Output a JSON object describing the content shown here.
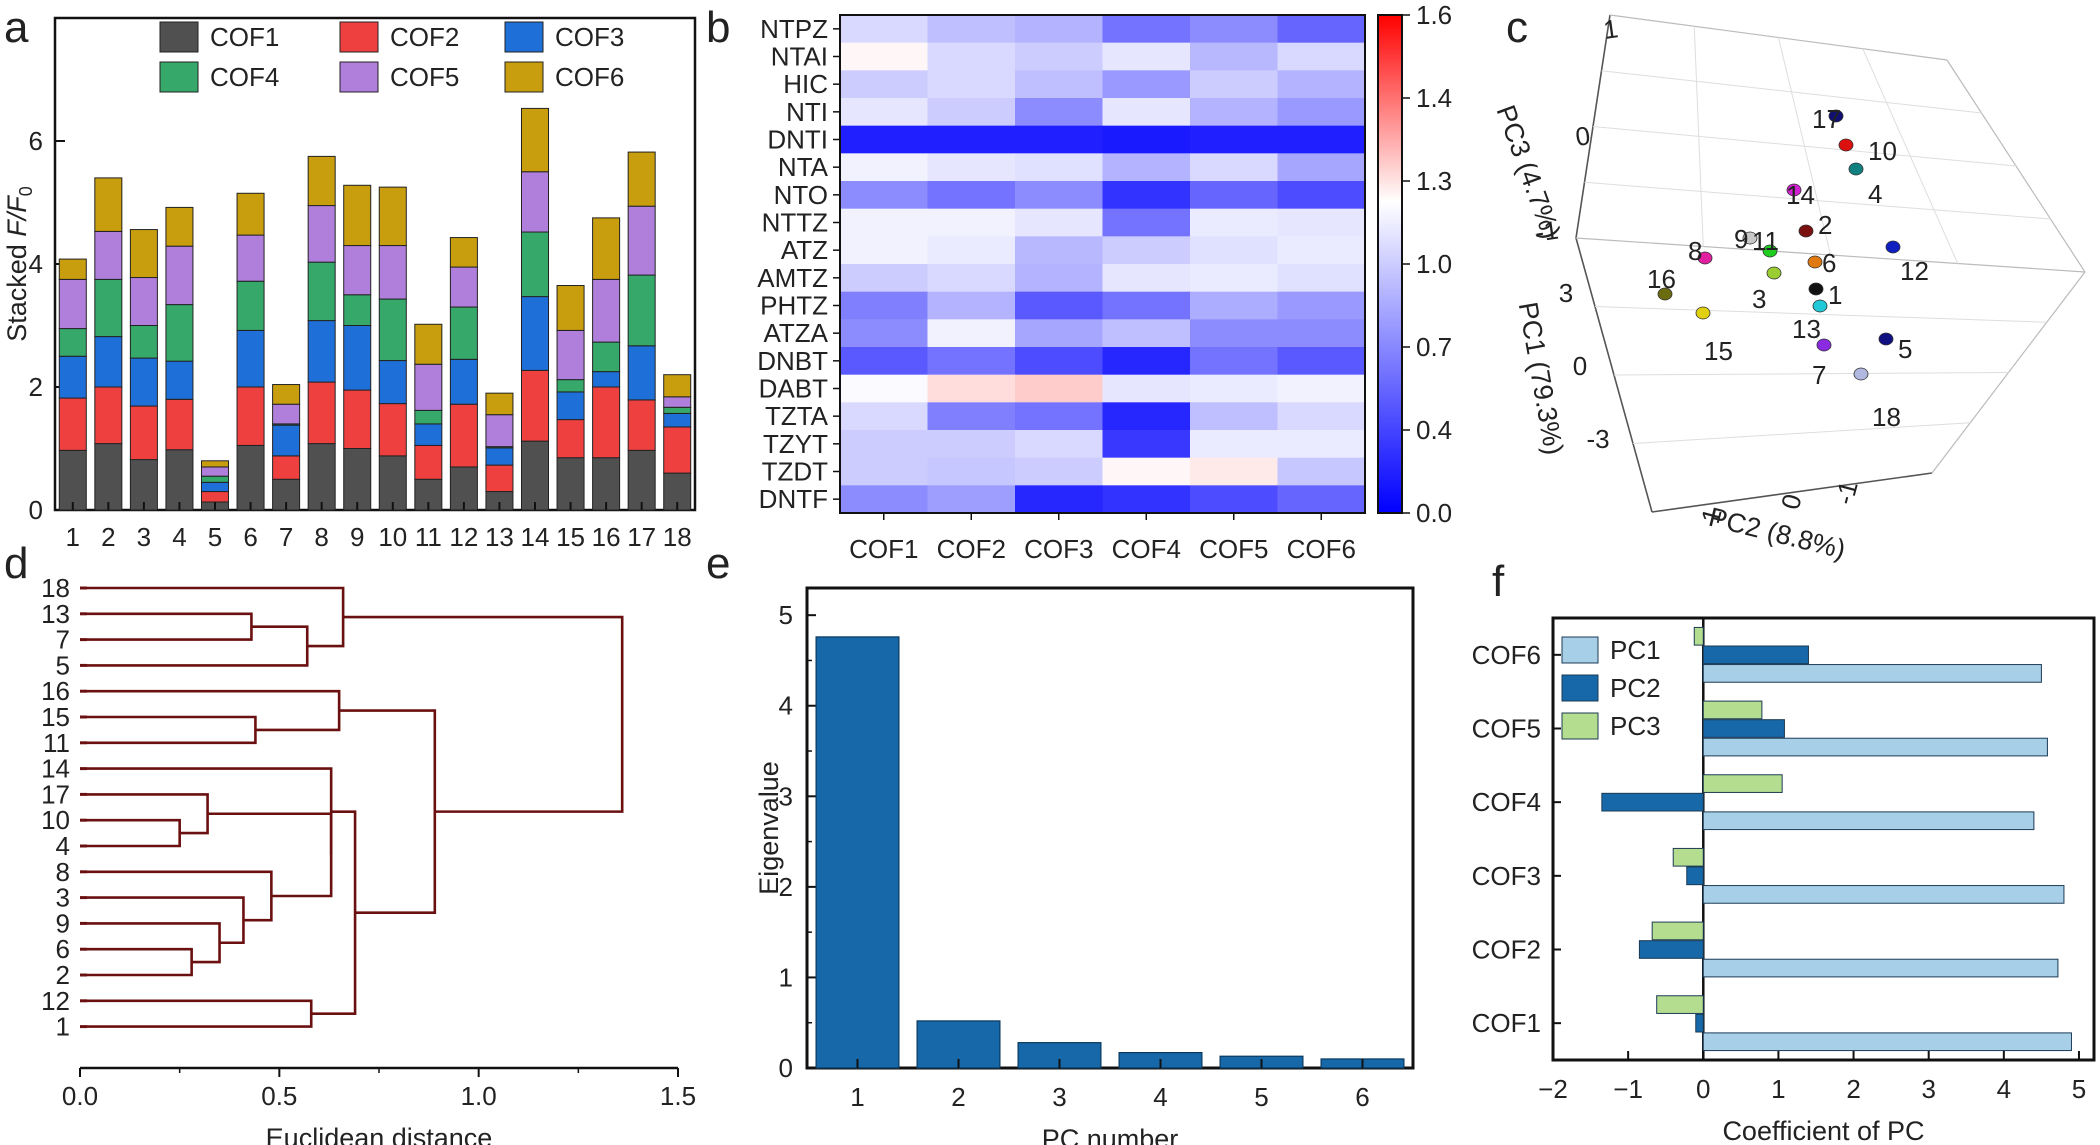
{
  "panel_labels": [
    "a",
    "b",
    "c",
    "d",
    "e",
    "f"
  ],
  "colors": {
    "cof1": "#505050",
    "cof2": "#ef4040",
    "cof3": "#1f6fd8",
    "cof4": "#35a86a",
    "cof5": "#b07fdb",
    "cof6": "#c89e0e",
    "dendro": "#6b1010",
    "bar_e": "#1668a8",
    "pc1": "#a7cfe8",
    "pc2": "#1668a8",
    "pc3": "#b5dd90"
  },
  "chart_data": [
    {
      "panel": "a",
      "type": "bar",
      "stacked": true,
      "ylabel": "Stacked F/F",
      "ylabel_sub": "0",
      "ylim": [
        0,
        8
      ],
      "yticks": [
        0,
        2,
        4,
        6
      ],
      "legend_position": "top",
      "categories": [
        "1",
        "2",
        "3",
        "4",
        "5",
        "6",
        "7",
        "8",
        "9",
        "10",
        "11",
        "12",
        "13",
        "14",
        "15",
        "16",
        "17",
        "18"
      ],
      "series": [
        {
          "name": "COF1",
          "values": [
            0.97,
            1.08,
            0.82,
            0.98,
            0.13,
            1.05,
            0.5,
            1.08,
            1.0,
            0.88,
            0.5,
            0.7,
            0.3,
            1.12,
            0.85,
            0.85,
            0.97,
            0.6
          ]
        },
        {
          "name": "COF2",
          "values": [
            0.85,
            0.92,
            0.87,
            0.82,
            0.17,
            0.95,
            0.38,
            1.0,
            0.95,
            0.85,
            0.55,
            1.02,
            0.43,
            1.15,
            0.62,
            1.15,
            0.82,
            0.75
          ]
        },
        {
          "name": "COF3",
          "values": [
            0.68,
            0.82,
            0.78,
            0.62,
            0.15,
            0.92,
            0.5,
            1.0,
            1.05,
            0.7,
            0.35,
            0.73,
            0.28,
            1.2,
            0.45,
            0.25,
            0.88,
            0.22
          ]
        },
        {
          "name": "COF4",
          "values": [
            0.45,
            0.93,
            0.53,
            0.92,
            0.1,
            0.8,
            0.02,
            0.95,
            0.5,
            1.0,
            0.22,
            0.85,
            0.02,
            1.05,
            0.2,
            0.48,
            1.15,
            0.1
          ]
        },
        {
          "name": "COF5",
          "values": [
            0.8,
            0.78,
            0.78,
            0.95,
            0.15,
            0.75,
            0.32,
            0.92,
            0.8,
            0.87,
            0.75,
            0.65,
            0.52,
            0.98,
            0.8,
            1.02,
            1.12,
            0.17
          ]
        },
        {
          "name": "COF6",
          "values": [
            0.33,
            0.87,
            0.78,
            0.63,
            0.1,
            0.68,
            0.32,
            0.8,
            0.98,
            0.95,
            0.65,
            0.48,
            0.35,
            1.03,
            0.73,
            1.0,
            0.88,
            0.36
          ]
        }
      ]
    },
    {
      "panel": "b",
      "type": "heatmap",
      "rows": [
        "NTPZ",
        "NTAI",
        "HIC",
        "NTI",
        "DNTI",
        "NTA",
        "NTO",
        "NTTZ",
        "ATZ",
        "AMTZ",
        "PHTZ",
        "ATZA",
        "DNBT",
        "DABT",
        "TZTA",
        "TZYT",
        "TZDT",
        "DNTF"
      ],
      "columns": [
        "COF1",
        "COF2",
        "COF3",
        "COF4",
        "COF5",
        "COF6"
      ],
      "colorbar_ticks": [
        "0.0",
        "0.4",
        "0.7",
        "1.0",
        "1.3",
        "1.4",
        "1.6"
      ],
      "colorbar_range": [
        0.0,
        1.6
      ],
      "values": [
        [
          0.85,
          0.75,
          0.7,
          0.45,
          0.55,
          0.4
        ],
        [
          1.02,
          0.85,
          0.8,
          0.9,
          0.72,
          0.85
        ],
        [
          0.8,
          0.85,
          0.75,
          0.6,
          0.8,
          0.7
        ],
        [
          0.9,
          0.8,
          0.55,
          0.9,
          0.7,
          0.6
        ],
        [
          0.12,
          0.12,
          0.12,
          0.1,
          0.12,
          0.12
        ],
        [
          0.95,
          0.9,
          0.88,
          0.7,
          0.85,
          0.65
        ],
        [
          0.55,
          0.45,
          0.55,
          0.2,
          0.4,
          0.3
        ],
        [
          0.95,
          0.95,
          0.9,
          0.45,
          0.92,
          0.9
        ],
        [
          0.95,
          0.92,
          0.72,
          0.8,
          0.88,
          0.92
        ],
        [
          0.8,
          0.85,
          0.7,
          0.9,
          0.92,
          0.88
        ],
        [
          0.5,
          0.7,
          0.35,
          0.45,
          0.68,
          0.6
        ],
        [
          0.55,
          0.95,
          0.65,
          0.75,
          0.55,
          0.55
        ],
        [
          0.35,
          0.45,
          0.3,
          0.15,
          0.45,
          0.35
        ],
        [
          0.98,
          1.08,
          1.12,
          0.9,
          0.92,
          0.95
        ],
        [
          0.85,
          0.5,
          0.45,
          0.15,
          0.75,
          0.85
        ],
        [
          0.8,
          0.8,
          0.85,
          0.22,
          0.92,
          0.92
        ],
        [
          0.8,
          0.78,
          0.8,
          1.02,
          1.05,
          0.78
        ],
        [
          0.55,
          0.62,
          0.15,
          0.2,
          0.3,
          0.4
        ]
      ]
    },
    {
      "panel": "c",
      "type": "scatter",
      "axis_labels": [
        "PC1 (79.3%)",
        "PC2 (8.8%)",
        "PC3 (4.7%)"
      ],
      "pc1_ticks": [
        "3",
        "0",
        "-3"
      ],
      "pc2_ticks": [
        "1",
        "0",
        "-1"
      ],
      "pc3_ticks": [
        "1",
        "0",
        "-1"
      ],
      "points": [
        {
          "label": "1",
          "color": "#111111"
        },
        {
          "label": "2",
          "color": "#7a1010"
        },
        {
          "label": "3",
          "color": "#9acd32"
        },
        {
          "label": "4",
          "color": "#0f8080"
        },
        {
          "label": "5",
          "color": "#101080"
        },
        {
          "label": "6",
          "color": "#e07a10"
        },
        {
          "label": "7",
          "color": "#8a2be2"
        },
        {
          "label": "8",
          "color": "#e020a0"
        },
        {
          "label": "9",
          "color": "#c8c8c8"
        },
        {
          "label": "10",
          "color": "#dd1010"
        },
        {
          "label": "11",
          "color": "#20cc20"
        },
        {
          "label": "12",
          "color": "#1020c0"
        },
        {
          "label": "13",
          "color": "#20c8d8"
        },
        {
          "label": "14",
          "color": "#d020d0"
        },
        {
          "label": "15",
          "color": "#e0d010"
        },
        {
          "label": "16",
          "color": "#6b6b10"
        },
        {
          "label": "17",
          "color": "#101070"
        },
        {
          "label": "18",
          "color": "#b0b8e0"
        }
      ]
    },
    {
      "panel": "d",
      "type": "dendrogram",
      "xlabel": "Euclidean distance",
      "xlim": [
        0,
        1.5
      ],
      "xticks": [
        "0.0",
        "0.5",
        "1.0",
        "1.5"
      ],
      "leaves": [
        "18",
        "13",
        "7",
        "5",
        "16",
        "15",
        "11",
        "14",
        "17",
        "10",
        "4",
        "8",
        "3",
        "9",
        "6",
        "2",
        "12",
        "1"
      ],
      "merges": [
        {
          "a": "10",
          "b": "4",
          "height": 0.25
        },
        {
          "a": "6",
          "b": "2",
          "height": 0.28
        },
        {
          "a": "(10,4)",
          "b": "17",
          "height": 0.32
        },
        {
          "a": "(6,2)",
          "b": "9",
          "height": 0.35
        },
        {
          "a": "(9,6,2)",
          "b": "3",
          "height": 0.41
        },
        {
          "a": "13",
          "b": "7",
          "height": 0.43
        },
        {
          "a": "15",
          "b": "11",
          "height": 0.44
        },
        {
          "a": "(3,9,6,2)",
          "b": "8",
          "height": 0.48
        },
        {
          "a": "(13,7)",
          "b": "5",
          "height": 0.57
        },
        {
          "a": "12",
          "b": "1",
          "height": 0.58
        },
        {
          "a": "(17,10,4)",
          "b": "(8,3,9,6,2)",
          "height": 0.63
        },
        {
          "a": "(15,11)",
          "b": "16",
          "height": 0.65
        },
        {
          "a": "14",
          "b": "(17,10,4,8,3,9,6,2)",
          "height": 0.63
        },
        {
          "a": "18",
          "b": "(13,7,5)",
          "height": 0.66
        },
        {
          "a": "(14,...)",
          "b": "(12,1)",
          "height": 0.69
        },
        {
          "a": "(16,15,11)",
          "b": "(14,...,12,1)",
          "height": 0.89
        },
        {
          "a": "(18,13,7,5)",
          "b": "(16,...,1)",
          "height": 1.36
        }
      ]
    },
    {
      "panel": "e",
      "type": "bar",
      "xlabel": "PC number",
      "ylabel": "Eigenvalue",
      "categories": [
        "1",
        "2",
        "3",
        "4",
        "5",
        "6"
      ],
      "values": [
        4.76,
        0.52,
        0.28,
        0.17,
        0.13,
        0.1
      ],
      "ylim": [
        0,
        5.3
      ],
      "yticks": [
        "0",
        "1",
        "2",
        "3",
        "4",
        "5"
      ]
    },
    {
      "panel": "f",
      "type": "bar",
      "orientation": "horizontal",
      "xlabel": "Coefficient of PC",
      "xlim": [
        -2,
        5.2
      ],
      "xticks": [
        "−2",
        "−1",
        "0",
        "1",
        "2",
        "3",
        "4",
        "5"
      ],
      "categories": [
        "COF1",
        "COF2",
        "COF3",
        "COF4",
        "COF5",
        "COF6"
      ],
      "legend_position": "top-left",
      "series": [
        {
          "name": "PC1",
          "values": [
            4.9,
            4.72,
            4.8,
            4.4,
            4.58,
            4.5
          ]
        },
        {
          "name": "PC2",
          "values": [
            -0.1,
            -0.85,
            -0.22,
            -1.35,
            1.08,
            1.4
          ]
        },
        {
          "name": "PC3",
          "values": [
            -0.62,
            -0.68,
            -0.4,
            1.05,
            0.78,
            -0.12
          ]
        }
      ]
    }
  ]
}
